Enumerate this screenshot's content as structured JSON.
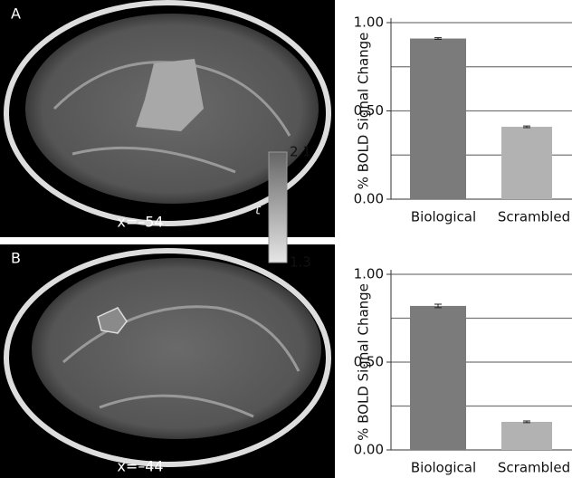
{
  "chart_data": [
    {
      "type": "bar",
      "ylabel": "% BOLD Signal Change",
      "categories": [
        "Biological",
        "Scrambled"
      ],
      "values": [
        0.91,
        0.41
      ],
      "errors": [
        0.005,
        0.005
      ],
      "colors": [
        "#7b7b7b",
        "#b2b2b2"
      ],
      "ylim": [
        0,
        1
      ],
      "yticks": [
        {
          "value": 0,
          "label": "0.00"
        },
        {
          "value": 0.5,
          "label": "0.50"
        },
        {
          "value": 1,
          "label": "1.00"
        }
      ],
      "gridlines": [
        0.25,
        0.5,
        0.75,
        1
      ]
    },
    {
      "type": "bar",
      "ylabel": "% BOLD Signal Change",
      "categories": [
        "Biological",
        "Scrambled"
      ],
      "values": [
        0.82,
        0.16
      ],
      "errors": [
        0.01,
        0.005
      ],
      "colors": [
        "#7b7b7b",
        "#b2b2b2"
      ],
      "ylim": [
        0,
        1
      ],
      "yticks": [
        {
          "value": 0,
          "label": "0.00"
        },
        {
          "value": 0.5,
          "label": "0.50"
        },
        {
          "value": 1,
          "label": "1.00"
        }
      ],
      "gridlines": [
        0.25,
        0.5,
        0.75,
        1
      ]
    }
  ],
  "panels": [
    {
      "label": "A",
      "coordinate": "x=–54"
    },
    {
      "label": "B",
      "coordinate": "x=–44"
    }
  ],
  "colorbar": {
    "label": "t",
    "ticks": [
      2.1,
      1.3
    ]
  }
}
